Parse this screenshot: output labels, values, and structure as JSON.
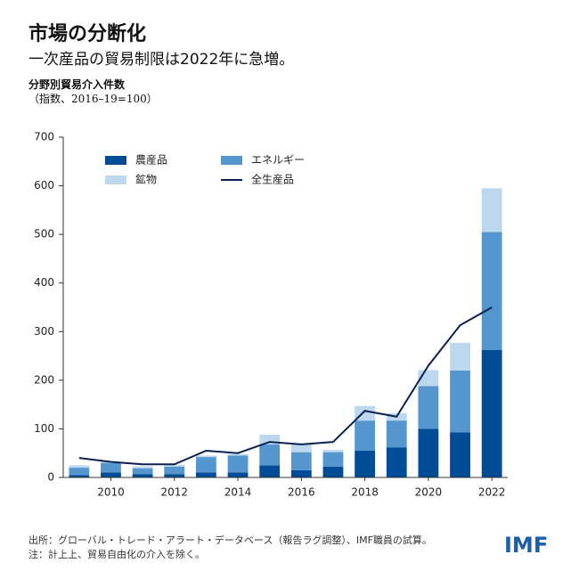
{
  "chart_data": {
    "type": "bar",
    "stacked": true,
    "title": "市場の分断化",
    "subtitle": "一次産品の貿易制限は2022年に急増。",
    "y_axis_title": "分野別貿易介入件数",
    "y_axis_note": "（指数、2016–19=100）",
    "x": [
      2009,
      2010,
      2011,
      2012,
      2013,
      2014,
      2015,
      2016,
      2017,
      2018,
      2019,
      2020,
      2021,
      2022
    ],
    "xlim": [
      2008.5,
      2022.5
    ],
    "xticks": [
      2010,
      2012,
      2014,
      2016,
      2018,
      2020,
      2022
    ],
    "ylim": [
      0,
      700
    ],
    "yticks": [
      0,
      100,
      200,
      300,
      400,
      500,
      600,
      700
    ],
    "series": [
      {
        "name": "農産品",
        "type": "bar",
        "color": "#004c97",
        "values": [
          5,
          10,
          7,
          7,
          10,
          10,
          25,
          15,
          22,
          55,
          62,
          100,
          93,
          262
        ]
      },
      {
        "name": "エネルギー",
        "type": "bar",
        "color": "#5596cf",
        "values": [
          15,
          20,
          12,
          15,
          32,
          35,
          43,
          37,
          30,
          62,
          55,
          88,
          127,
          243
        ]
      },
      {
        "name": "鉱物",
        "type": "bar",
        "color": "#bcd8ef",
        "values": [
          5,
          3,
          4,
          4,
          3,
          3,
          20,
          16,
          5,
          30,
          15,
          33,
          57,
          90
        ]
      },
      {
        "name": "全生産品",
        "type": "line",
        "color": "#0b2150",
        "values": [
          40,
          32,
          27,
          27,
          55,
          50,
          73,
          68,
          73,
          137,
          125,
          230,
          313,
          350
        ]
      }
    ],
    "source": "出所：グローバル・トレード・アラート・データベース（報告ラグ調整）、IMF職員の試算。",
    "note": "注：計上上、貿易自由化の介入を除く。",
    "logo": "IMF"
  }
}
